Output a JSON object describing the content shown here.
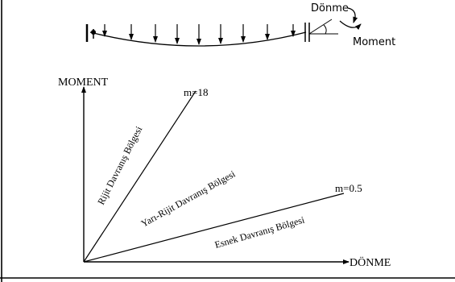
{
  "beam": {
    "rotation_label": "Dönme",
    "moment_label": "Moment"
  },
  "graph": {
    "y_axis_label": "MOMENT",
    "x_axis_label": "DÖNME",
    "lines": [
      {
        "label": "m=18"
      },
      {
        "label": "m=0.5"
      }
    ],
    "regions": {
      "rigid": "Rijit Davranış Bölgesi",
      "semi_rigid": "Yarı-Rijit Davranış Bölgesi",
      "flexible": "Esnek Davranış Bölgesi"
    }
  }
}
